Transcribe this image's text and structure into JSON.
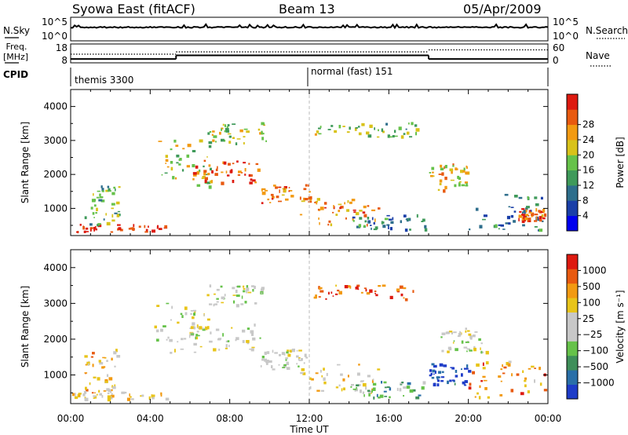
{
  "header": {
    "station": "Syowa East (fitACF)",
    "beam": "Beam 13",
    "date": "05/Apr/2009"
  },
  "strips": {
    "nsky_label": "N.Sky",
    "nsearch_label": "N.Search",
    "freq_label_1": "Freq.",
    "freq_label_2": "[MHz]",
    "nave_label": "Nave",
    "cpid_label": "CPID",
    "nsky_ticks": [
      "10^5",
      "10^0"
    ],
    "nsearch_ticks": [
      "10^5",
      "10^0"
    ],
    "freq_ticks": [
      "18",
      "8"
    ],
    "nave_ticks": [
      "60",
      "0"
    ],
    "cpid_segments": [
      {
        "label": "themis 3300",
        "start_hour": 0,
        "end_hour": 12
      },
      {
        "label": "normal (fast) 151",
        "start_hour": 12,
        "end_hour": 24
      }
    ],
    "freq_steps": [
      {
        "start_hour": 0,
        "end_hour": 5.3,
        "mhz": 10.2
      },
      {
        "start_hour": 5.3,
        "end_hour": 18,
        "mhz": 12.3
      },
      {
        "start_hour": 18,
        "end_hour": 24,
        "mhz": 10.2
      }
    ],
    "nave_steps": [
      {
        "start_hour": 0,
        "end_hour": 5.3,
        "value": 30
      },
      {
        "start_hour": 5.3,
        "end_hour": 18,
        "value": 38
      },
      {
        "start_hour": 18,
        "end_hour": 24,
        "value": 45
      }
    ]
  },
  "chart_data": [
    {
      "type": "heatmap",
      "title": "",
      "xlabel": "",
      "ylabel": "Slant Range [km]",
      "x_range_hours": [
        0,
        24
      ],
      "y_range_km": [
        200,
        4500
      ],
      "x_ticks": [
        "00:00",
        "04:00",
        "08:00",
        "12:00",
        "16:00",
        "20:00",
        "00:00"
      ],
      "y_ticks": [
        "1000",
        "2000",
        "3000",
        "4000"
      ],
      "colorbar": {
        "label": "Power [dB]",
        "ticks": [
          "4",
          "8",
          "12",
          "16",
          "20",
          "24",
          "28"
        ],
        "colors": [
          "#0000ee",
          "#1a3fa8",
          "#2e6e8c",
          "#3f9a5a",
          "#66c24a",
          "#d8c21a",
          "#f29a12",
          "#e85a10",
          "#dd1a10"
        ]
      },
      "regions": [
        {
          "t0": 0.0,
          "t1": 4.8,
          "r0": 300,
          "r1": 520,
          "level": 0.95
        },
        {
          "t0": 0.6,
          "t1": 2.4,
          "r0": 500,
          "r1": 1700,
          "level": 0.45
        },
        {
          "t0": 4.2,
          "t1": 7.0,
          "r0": 1600,
          "r1": 3000,
          "level": 0.55
        },
        {
          "t0": 6.0,
          "t1": 9.5,
          "r0": 1700,
          "r1": 2400,
          "level": 0.85
        },
        {
          "t0": 6.8,
          "t1": 9.8,
          "r0": 2900,
          "r1": 3500,
          "level": 0.55
        },
        {
          "t0": 9.5,
          "t1": 12.0,
          "r0": 1150,
          "r1": 1700,
          "level": 0.8
        },
        {
          "t0": 11.5,
          "t1": 15.5,
          "r0": 500,
          "r1": 1300,
          "level": 0.75
        },
        {
          "t0": 12.2,
          "t1": 17.5,
          "r0": 3100,
          "r1": 3500,
          "level": 0.5
        },
        {
          "t0": 14.0,
          "t1": 17.8,
          "r0": 350,
          "r1": 800,
          "level": 0.3
        },
        {
          "t0": 18.0,
          "t1": 20.0,
          "r0": 1500,
          "r1": 2300,
          "level": 0.65
        },
        {
          "t0": 20.0,
          "t1": 23.8,
          "r0": 350,
          "r1": 1400,
          "level": 0.3
        },
        {
          "t0": 22.5,
          "t1": 23.8,
          "r0": 600,
          "r1": 1000,
          "level": 0.8
        }
      ]
    },
    {
      "type": "heatmap",
      "title": "",
      "xlabel": "Time UT",
      "ylabel": "Slant Range [km]",
      "x_range_hours": [
        0,
        24
      ],
      "y_range_km": [
        200,
        4500
      ],
      "x_ticks": [
        "00:00",
        "04:00",
        "08:00",
        "12:00",
        "16:00",
        "20:00",
        "00:00"
      ],
      "y_ticks": [
        "1000",
        "2000",
        "3000",
        "4000"
      ],
      "colorbar": {
        "label": "Velocity [m s⁻¹]",
        "ticks": [
          "1000",
          "500",
          "100",
          "25",
          "−25",
          "−100",
          "−500",
          "−1000"
        ],
        "colors": [
          "#1e3cc8",
          "#2a6fa8",
          "#3f8f5a",
          "#66c24a",
          "#c8c8c8",
          "#c8c8c8",
          "#e8c41a",
          "#f29a12",
          "#e85a10",
          "#dd1a10"
        ]
      },
      "regions": [
        {
          "t0": 0.0,
          "t1": 4.8,
          "r0": 300,
          "r1": 520,
          "level": 0.62
        },
        {
          "t0": 0.6,
          "t1": 2.4,
          "r0": 500,
          "r1": 1700,
          "level": 0.72
        },
        {
          "t0": 4.2,
          "t1": 7.0,
          "r0": 1600,
          "r1": 3000,
          "level": 0.5
        },
        {
          "t0": 6.0,
          "t1": 9.5,
          "r0": 1700,
          "r1": 2400,
          "level": 0.5
        },
        {
          "t0": 6.8,
          "t1": 9.8,
          "r0": 2900,
          "r1": 3500,
          "level": 0.5
        },
        {
          "t0": 9.5,
          "t1": 12.0,
          "r0": 1150,
          "r1": 1700,
          "level": 0.5
        },
        {
          "t0": 11.5,
          "t1": 15.5,
          "r0": 500,
          "r1": 1300,
          "level": 0.6
        },
        {
          "t0": 12.2,
          "t1": 17.5,
          "r0": 3100,
          "r1": 3500,
          "level": 0.85
        },
        {
          "t0": 14.0,
          "t1": 17.8,
          "r0": 350,
          "r1": 800,
          "level": 0.3
        },
        {
          "t0": 18.0,
          "t1": 20.0,
          "r0": 700,
          "r1": 1300,
          "level": 0.05
        },
        {
          "t0": 18.5,
          "t1": 21.0,
          "r0": 1600,
          "r1": 2300,
          "level": 0.5
        },
        {
          "t0": 20.0,
          "t1": 23.8,
          "r0": 350,
          "r1": 1400,
          "level": 0.75
        }
      ]
    }
  ]
}
